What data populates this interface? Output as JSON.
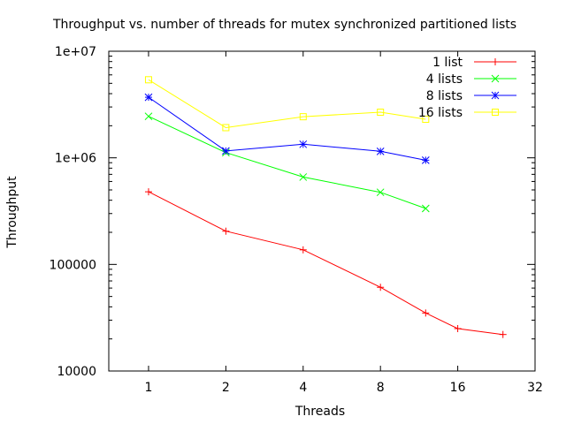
{
  "chart_data": {
    "type": "line",
    "title": "Throughput vs. number of threads for mutex synchronized partitioned lists",
    "xlabel": "Threads",
    "ylabel": "Throughput",
    "x_scale": "log2",
    "y_scale": "log10",
    "xlim": [
      0.7,
      32
    ],
    "ylim": [
      10000,
      10000000
    ],
    "x_ticks": [
      {
        "value": 1,
        "label": "1"
      },
      {
        "value": 2,
        "label": "2"
      },
      {
        "value": 4,
        "label": "4"
      },
      {
        "value": 8,
        "label": "8"
      },
      {
        "value": 16,
        "label": "16"
      },
      {
        "value": 32,
        "label": "32"
      }
    ],
    "y_ticks": [
      {
        "value": 10000,
        "label": "10000"
      },
      {
        "value": 100000,
        "label": "100000"
      },
      {
        "value": 1000000,
        "label": "1e+06"
      },
      {
        "value": 10000000,
        "label": "1e+07"
      }
    ],
    "legend_position": "top-right",
    "grid": false,
    "series": [
      {
        "name": "1 list",
        "color": "#ff0000",
        "marker": "plus",
        "x": [
          1,
          2,
          4,
          8,
          12,
          16,
          24
        ],
        "y": [
          480000,
          205000,
          137000,
          61000,
          35000,
          25000,
          22000
        ]
      },
      {
        "name": "4 lists",
        "color": "#00ff00",
        "marker": "cross",
        "x": [
          1,
          2,
          4,
          8,
          12
        ],
        "y": [
          2450000,
          1120000,
          660000,
          475000,
          335000
        ]
      },
      {
        "name": "8 lists",
        "color": "#0000ff",
        "marker": "star",
        "x": [
          1,
          2,
          4,
          8,
          12
        ],
        "y": [
          3700000,
          1160000,
          1340000,
          1150000,
          950000
        ]
      },
      {
        "name": "16 lists",
        "color": "#ffff00",
        "marker": "square",
        "x": [
          1,
          2,
          4,
          8,
          12
        ],
        "y": [
          5400000,
          1920000,
          2430000,
          2680000,
          2300000
        ]
      }
    ]
  }
}
